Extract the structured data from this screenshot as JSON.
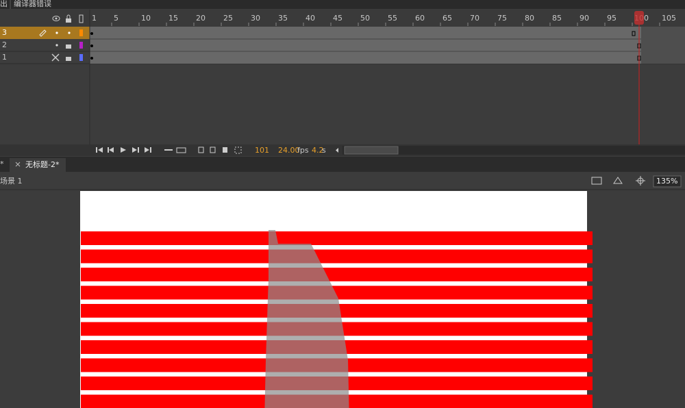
{
  "tabs": {
    "left": "出",
    "panel": "编译器错误"
  },
  "timeline": {
    "frame_numbers": [
      1,
      5,
      10,
      15,
      20,
      25,
      30,
      35,
      40,
      45,
      50,
      55,
      60,
      65,
      70,
      75,
      80,
      85,
      90,
      95,
      100,
      105
    ],
    "layers": [
      {
        "name": "3"
      },
      {
        "name": "2"
      },
      {
        "name": "1"
      }
    ],
    "status": {
      "current_frame": "101",
      "fps": "24.00",
      "fps_unit": "fps",
      "time": "4.2",
      "time_unit": "s"
    }
  },
  "document_tabs": [
    "*",
    "无标题-2*"
  ],
  "scene": {
    "name": "场景 1",
    "zoom": "135%"
  }
}
